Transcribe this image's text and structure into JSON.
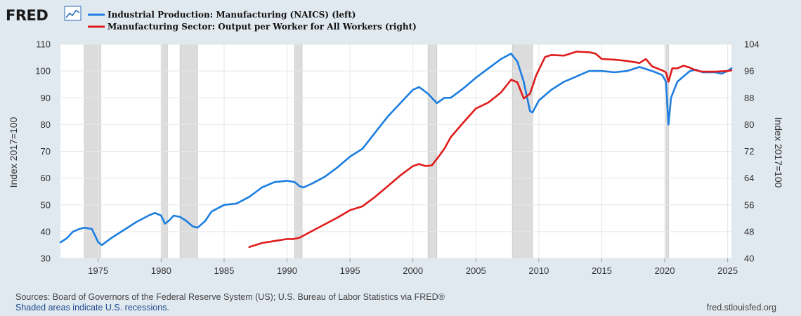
{
  "branding": {
    "logo_text": "FRED",
    "logo_icon": "line-chart-icon"
  },
  "footer": {
    "sources": "Sources: Board of Governors of the Federal Reserve System (US); U.S. Bureau of Labor Statistics via FRED®",
    "recessions_note": "Shaded areas indicate U.S. recessions.",
    "site": "fred.stlouisfed.org"
  },
  "colors": {
    "background": "#e1e9f0",
    "plot_background": "#ffffff",
    "recession": "#dcdcdc",
    "series_left": "#1c7ee0",
    "series_right": "#e01b1b",
    "grid": "#e6e6e6"
  },
  "chart_data": {
    "type": "line",
    "xlabel": "",
    "ylabel_left": "Index 2017=100",
    "ylabel_right": "Index 2017=100",
    "xlim": [
      1972.0,
      2025.3
    ],
    "ylim_left": [
      30,
      110
    ],
    "ylim_right": [
      40,
      104
    ],
    "x_ticks": [
      "1975",
      "1980",
      "1985",
      "1990",
      "1995",
      "2000",
      "2005",
      "2010",
      "2015",
      "2020",
      "2025"
    ],
    "y_ticks_left": [
      "30",
      "40",
      "50",
      "60",
      "70",
      "80",
      "90",
      "100",
      "110"
    ],
    "y_ticks_right": [
      "40",
      "48",
      "56",
      "64",
      "72",
      "80",
      "88",
      "96",
      "104"
    ],
    "grid": true,
    "recessions": [
      [
        1973.9,
        1975.2
      ],
      [
        1980.0,
        1980.5
      ],
      [
        1981.5,
        1982.9
      ],
      [
        1990.6,
        1991.2
      ],
      [
        2001.2,
        2001.9
      ],
      [
        2007.9,
        2009.5
      ],
      [
        2020.1,
        2020.3
      ]
    ],
    "series": [
      {
        "name": "Industrial Production: Manufacturing (NAICS) (left)",
        "axis": "left",
        "color": "#1c7ee0",
        "points": [
          [
            1972.0,
            36
          ],
          [
            1972.5,
            37.5
          ],
          [
            1973.0,
            40
          ],
          [
            1973.5,
            41
          ],
          [
            1973.9,
            41.5
          ],
          [
            1974.5,
            41
          ],
          [
            1975.0,
            36
          ],
          [
            1975.3,
            35
          ],
          [
            1976.0,
            37.5
          ],
          [
            1977.0,
            40.5
          ],
          [
            1978.0,
            43.5
          ],
          [
            1979.0,
            46
          ],
          [
            1979.5,
            47
          ],
          [
            1980.0,
            46
          ],
          [
            1980.3,
            43
          ],
          [
            1980.6,
            44
          ],
          [
            1981.0,
            46
          ],
          [
            1981.5,
            45.5
          ],
          [
            1982.0,
            44
          ],
          [
            1982.5,
            42
          ],
          [
            1982.9,
            41.5
          ],
          [
            1983.5,
            44
          ],
          [
            1984.0,
            47.5
          ],
          [
            1985.0,
            50
          ],
          [
            1986.0,
            50.5
          ],
          [
            1987.0,
            53
          ],
          [
            1988.0,
            56.5
          ],
          [
            1989.0,
            58.5
          ],
          [
            1990.0,
            59
          ],
          [
            1990.6,
            58.5
          ],
          [
            1991.0,
            57
          ],
          [
            1991.3,
            56.5
          ],
          [
            1992.0,
            58
          ],
          [
            1993.0,
            60.5
          ],
          [
            1994.0,
            64
          ],
          [
            1995.0,
            68
          ],
          [
            1996.0,
            71
          ],
          [
            1997.0,
            77
          ],
          [
            1998.0,
            83
          ],
          [
            1999.0,
            88
          ],
          [
            2000.0,
            93
          ],
          [
            2000.5,
            94
          ],
          [
            2001.2,
            91.5
          ],
          [
            2001.9,
            88
          ],
          [
            2002.5,
            90
          ],
          [
            2003.0,
            90
          ],
          [
            2004.0,
            93.5
          ],
          [
            2005.0,
            97.5
          ],
          [
            2006.0,
            101
          ],
          [
            2007.0,
            104.5
          ],
          [
            2007.8,
            106.5
          ],
          [
            2008.3,
            103.5
          ],
          [
            2008.8,
            96
          ],
          [
            2009.3,
            85
          ],
          [
            2009.5,
            84.5
          ],
          [
            2010.0,
            89
          ],
          [
            2011.0,
            93
          ],
          [
            2012.0,
            96
          ],
          [
            2013.0,
            98
          ],
          [
            2014.0,
            100
          ],
          [
            2015.0,
            100
          ],
          [
            2016.0,
            99.5
          ],
          [
            2017.0,
            100
          ],
          [
            2018.0,
            101.5
          ],
          [
            2019.0,
            100
          ],
          [
            2019.8,
            98.5
          ],
          [
            2020.1,
            96
          ],
          [
            2020.3,
            80
          ],
          [
            2020.5,
            90
          ],
          [
            2021.0,
            96
          ],
          [
            2021.5,
            98
          ],
          [
            2022.0,
            100
          ],
          [
            2022.5,
            100.5
          ],
          [
            2023.0,
            99.5
          ],
          [
            2023.5,
            99.5
          ],
          [
            2024.0,
            99.5
          ],
          [
            2024.5,
            99
          ],
          [
            2025.0,
            100
          ],
          [
            2025.3,
            101
          ]
        ]
      },
      {
        "name": "Manufacturing Sector: Output per Worker for All Workers (right)",
        "axis": "right",
        "color": "#e01b1b",
        "points": [
          [
            1987.0,
            43.4
          ],
          [
            1988.0,
            44.6
          ],
          [
            1989.0,
            45.2
          ],
          [
            1990.0,
            45.8
          ],
          [
            1990.5,
            45.8
          ],
          [
            1991.0,
            46.2
          ],
          [
            1992.0,
            48.2
          ],
          [
            1993.0,
            50.2
          ],
          [
            1994.0,
            52.2
          ],
          [
            1995.0,
            54.4
          ],
          [
            1996.0,
            55.6
          ],
          [
            1997.0,
            58.4
          ],
          [
            1998.0,
            61.6
          ],
          [
            1999.0,
            64.8
          ],
          [
            2000.0,
            67.6
          ],
          [
            2000.5,
            68.2
          ],
          [
            2001.0,
            67.6
          ],
          [
            2001.5,
            67.8
          ],
          [
            2002.0,
            70.2
          ],
          [
            2002.5,
            72.8
          ],
          [
            2003.0,
            76.2
          ],
          [
            2004.0,
            80.6
          ],
          [
            2005.0,
            84.8
          ],
          [
            2006.0,
            86.6
          ],
          [
            2007.0,
            89.6
          ],
          [
            2007.8,
            93.4
          ],
          [
            2008.3,
            92.6
          ],
          [
            2008.8,
            87.8
          ],
          [
            2009.3,
            89.2
          ],
          [
            2009.8,
            94.8
          ],
          [
            2010.5,
            100.2
          ],
          [
            2011.0,
            100.8
          ],
          [
            2012.0,
            100.6
          ],
          [
            2013.0,
            101.8
          ],
          [
            2014.0,
            101.6
          ],
          [
            2014.5,
            101.2
          ],
          [
            2015.0,
            99.6
          ],
          [
            2016.0,
            99.4
          ],
          [
            2017.0,
            99.0
          ],
          [
            2018.0,
            98.4
          ],
          [
            2018.5,
            99.6
          ],
          [
            2019.0,
            97.4
          ],
          [
            2019.8,
            96.2
          ],
          [
            2020.1,
            95.6
          ],
          [
            2020.3,
            92.8
          ],
          [
            2020.6,
            96.8
          ],
          [
            2021.0,
            96.8
          ],
          [
            2021.5,
            97.6
          ],
          [
            2022.0,
            97.0
          ],
          [
            2022.5,
            96.2
          ],
          [
            2023.0,
            95.8
          ],
          [
            2024.0,
            95.8
          ],
          [
            2025.0,
            96.0
          ],
          [
            2025.3,
            96.2
          ]
        ]
      }
    ]
  }
}
